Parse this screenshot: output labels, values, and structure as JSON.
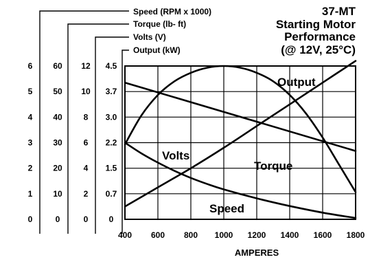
{
  "chart_data": {
    "type": "line",
    "title_lines": [
      "37-MT",
      "Starting Motor",
      "Performance",
      "(@ 12V, 25°C)"
    ],
    "xlabel": "AMPERES",
    "x_ticks": [
      400,
      600,
      800,
      1000,
      1200,
      1400,
      1600,
      1800
    ],
    "xlim": [
      400,
      1800
    ],
    "axes": [
      {
        "key": "speed",
        "legend": "Speed (RPM x 1000)",
        "ticks": [
          "0",
          "1",
          "2",
          "3",
          "4",
          "5",
          "6"
        ],
        "range": [
          0,
          6
        ]
      },
      {
        "key": "torque",
        "legend": "Torque (lb- ft)",
        "ticks": [
          "0",
          "10",
          "20",
          "30",
          "40",
          "50",
          "60"
        ],
        "range": [
          0,
          60
        ]
      },
      {
        "key": "volts",
        "legend": "Volts (V)",
        "ticks": [
          "0",
          "2",
          "4",
          "6",
          "8",
          "10",
          "12"
        ],
        "range": [
          0,
          12
        ]
      },
      {
        "key": "output",
        "legend": "Output (kW)",
        "ticks": [
          "0",
          "0.7",
          "1.5",
          "2.2",
          "3.0",
          "3.7",
          "4.5"
        ],
        "range": [
          0,
          4.5
        ]
      }
    ],
    "series": [
      {
        "name": "Output",
        "axis": "output",
        "x": [
          400,
          500,
          600,
          700,
          800,
          900,
          1000,
          1100,
          1200,
          1300,
          1400,
          1500,
          1600,
          1700,
          1800
        ],
        "y": [
          2.2,
          3.05,
          3.65,
          4.05,
          4.3,
          4.45,
          4.5,
          4.45,
          4.3,
          4.05,
          3.65,
          3.1,
          2.4,
          1.6,
          0.8
        ]
      },
      {
        "name": "Volts",
        "axis": "volts",
        "x": [
          400,
          1800
        ],
        "y": [
          10.7,
          5.35
        ]
      },
      {
        "name": "Torque",
        "axis": "torque",
        "x": [
          400,
          600,
          800,
          1000,
          1200,
          1400,
          1600,
          1800
        ],
        "y": [
          5,
          12.5,
          20,
          28,
          36.5,
          45,
          53.5,
          62
        ]
      },
      {
        "name": "Speed",
        "axis": "speed",
        "x": [
          400,
          500,
          600,
          700,
          800,
          900,
          1000,
          1200,
          1400,
          1600,
          1800
        ],
        "y": [
          3.0,
          2.58,
          2.22,
          1.9,
          1.62,
          1.38,
          1.17,
          0.82,
          0.52,
          0.26,
          0.05
        ]
      }
    ],
    "grid": true
  }
}
